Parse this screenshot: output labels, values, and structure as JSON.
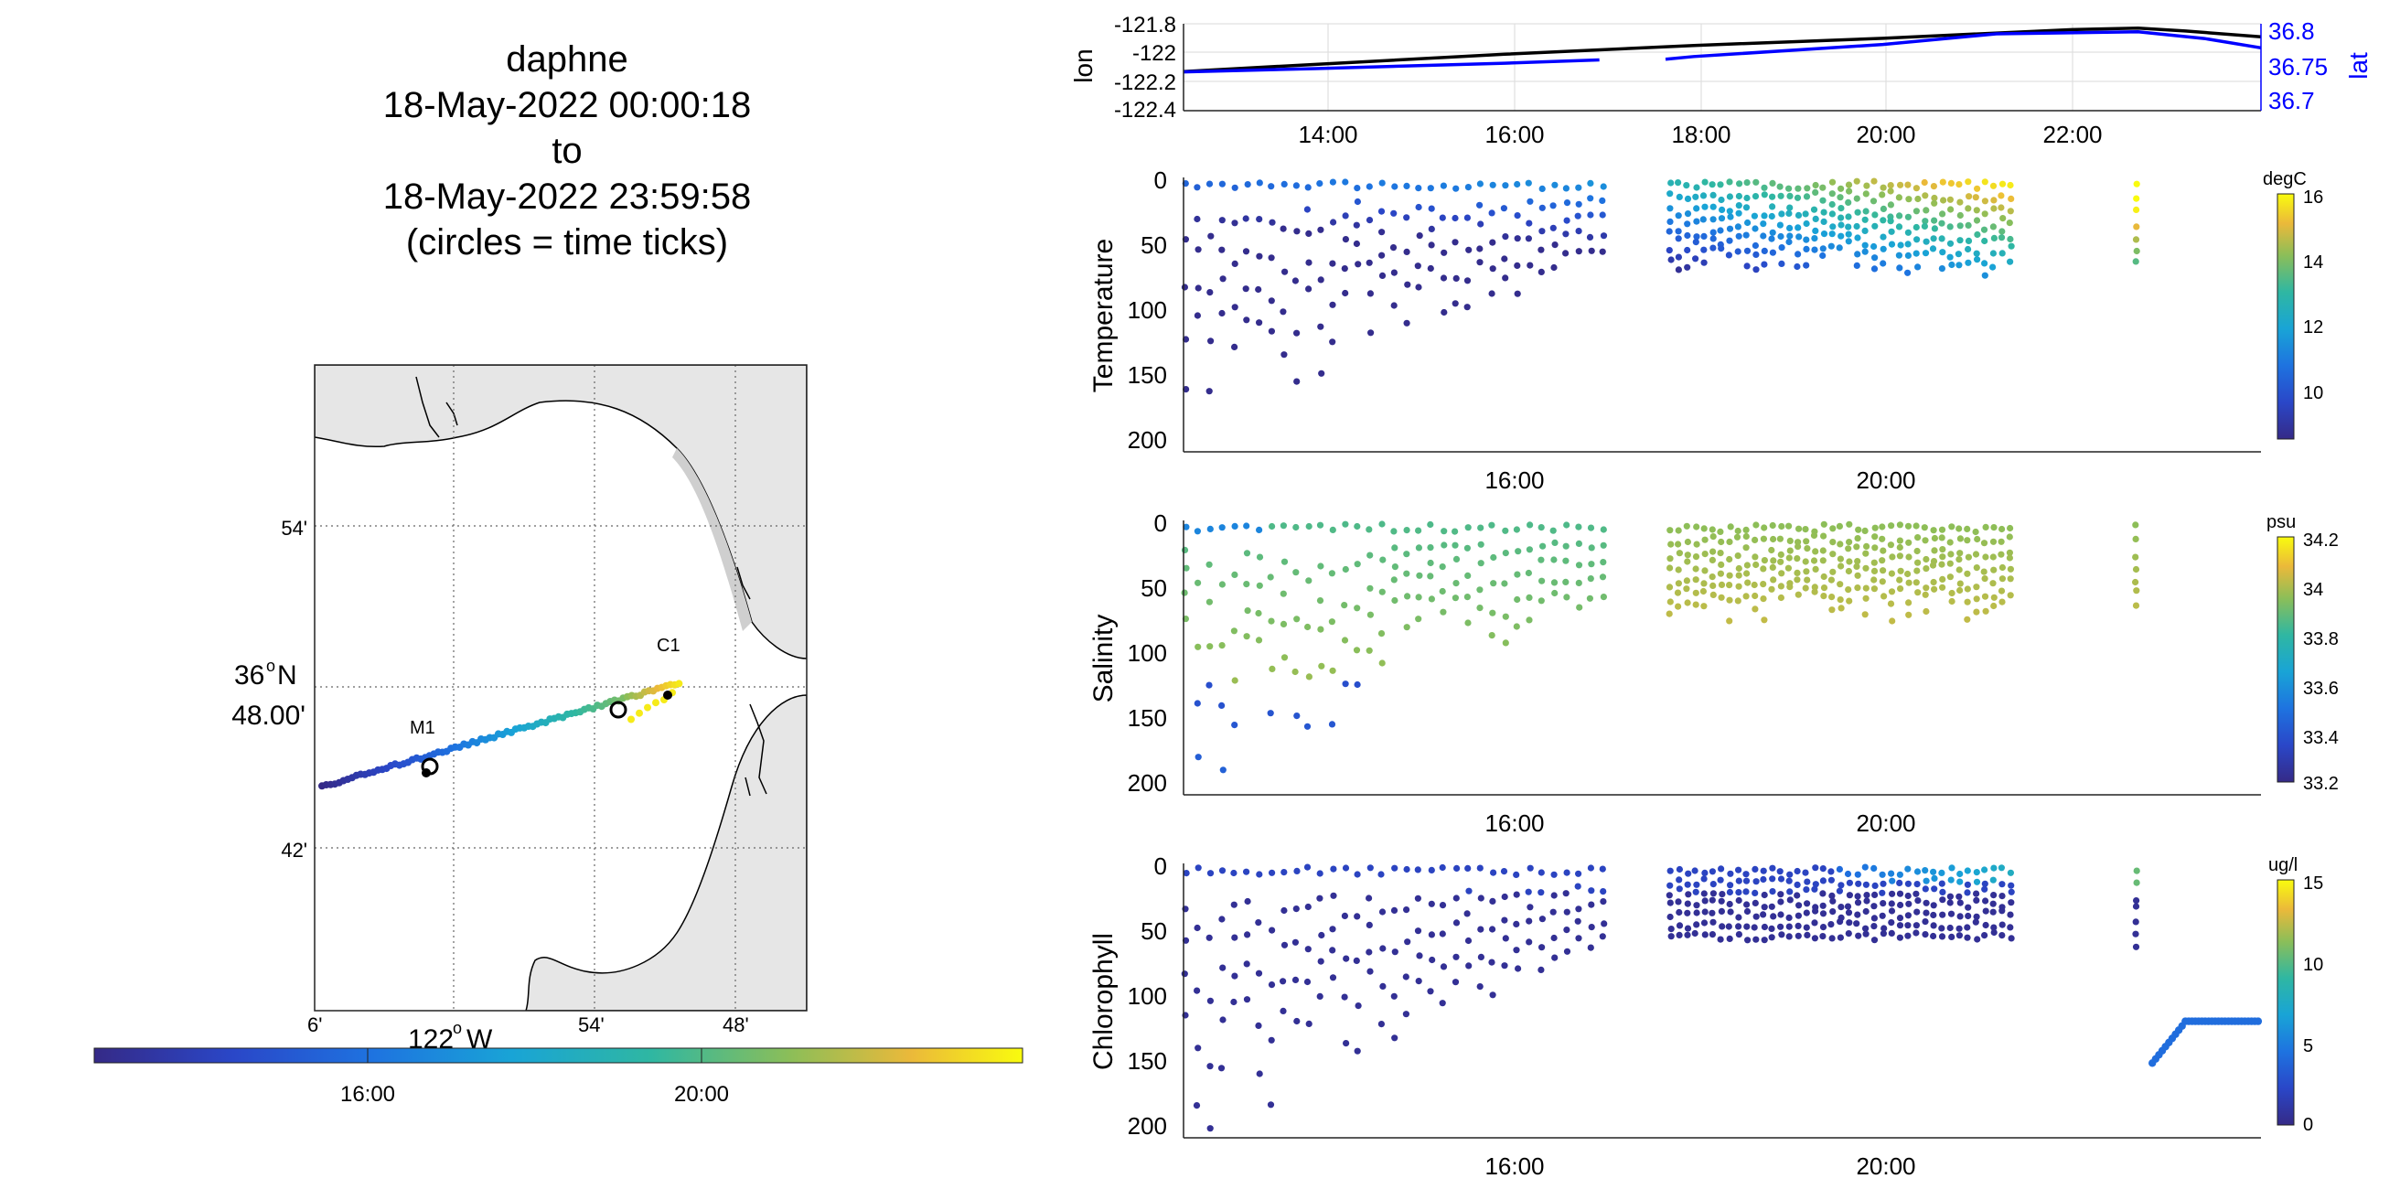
{
  "title_lines": [
    "daphne",
    "18-May-2022 00:00:18",
    "to",
    "18-May-2022 23:59:58",
    "(circles = time ticks)"
  ],
  "map": {
    "lat_labels": [
      "54'",
      "48.00'",
      "42'"
    ],
    "lat_main_label": "36",
    "lat_main_deg": "o",
    "lat_main_hemi": "N",
    "lon_labels": [
      "6'",
      "54'",
      "48'"
    ],
    "lon_main_label": "122",
    "lon_main_deg": "o",
    "lon_main_hemi": "W",
    "stations": [
      "M1",
      "C1"
    ],
    "land_color": "#e6e6e6",
    "colorbar_ticks": [
      "16:00",
      "20:00"
    ]
  },
  "chart_data": [
    {
      "type": "line",
      "title": "",
      "xlabel": "",
      "ylabel": "lon",
      "ylabel_right": "lat",
      "x_ticks": [
        "14:00",
        "16:00",
        "18:00",
        "20:00",
        "22:00"
      ],
      "y_ticks_left": [
        "-121.8",
        "-122",
        "-122.2",
        "-122.4"
      ],
      "y_ticks_right": [
        "36.8",
        "36.75",
        "36.7"
      ],
      "ylim_left": [
        -122.4,
        -121.8
      ],
      "ylim_right": [
        36.68,
        36.81
      ],
      "grid": true,
      "series": [
        {
          "name": "lon",
          "color": "#000000",
          "x": [
            12.6,
            14.0,
            16.0,
            18.0,
            20.0,
            21.0,
            22.0,
            22.7,
            23.2,
            24.0
          ],
          "y": [
            -122.13,
            -122.08,
            -122.01,
            -121.95,
            -121.9,
            -121.87,
            -121.84,
            -121.83,
            -121.85,
            -121.89
          ]
        },
        {
          "name": "lat",
          "color": "#0000ff",
          "segments": [
            {
              "x": [
                12.6,
                14.0,
                16.0,
                17.0
              ],
              "y": [
                36.738,
                36.743,
                36.751,
                36.756
              ]
            },
            {
              "x": [
                17.7,
                18.0,
                20.0,
                21.2,
                22.7,
                23.4,
                24.0
              ],
              "y": [
                36.757,
                36.761,
                36.779,
                36.795,
                36.798,
                36.788,
                36.774
              ]
            }
          ]
        }
      ]
    },
    {
      "type": "scatter",
      "ylabel": "Temperature",
      "x_ticks": [
        "16:00",
        "20:00"
      ],
      "y_ticks": [
        "0",
        "50",
        "100",
        "150",
        "200"
      ],
      "ylim": [
        0,
        210
      ],
      "y_reversed": true,
      "colorbar_label": "degC",
      "colorbar_ticks": [
        "16",
        "14",
        "12",
        "10"
      ],
      "clim": [
        8.5,
        16
      ]
    },
    {
      "type": "scatter",
      "ylabel": "Salinity",
      "x_ticks": [
        "16:00",
        "20:00"
      ],
      "y_ticks": [
        "0",
        "50",
        "100",
        "150",
        "200"
      ],
      "ylim": [
        0,
        210
      ],
      "y_reversed": true,
      "colorbar_label": "psu",
      "colorbar_ticks": [
        "34.2",
        "34",
        "33.8",
        "33.6",
        "33.4",
        "33.2"
      ],
      "clim": [
        33.2,
        34.2
      ]
    },
    {
      "type": "scatter",
      "ylabel": "Chlorophyll",
      "x_ticks": [
        "16:00",
        "20:00"
      ],
      "y_ticks": [
        "0",
        "50",
        "100",
        "150",
        "200"
      ],
      "ylim": [
        0,
        210
      ],
      "y_reversed": true,
      "colorbar_label": "ug/l",
      "colorbar_ticks": [
        "15",
        "10",
        "5",
        "0"
      ],
      "clim": [
        0,
        15
      ]
    }
  ]
}
